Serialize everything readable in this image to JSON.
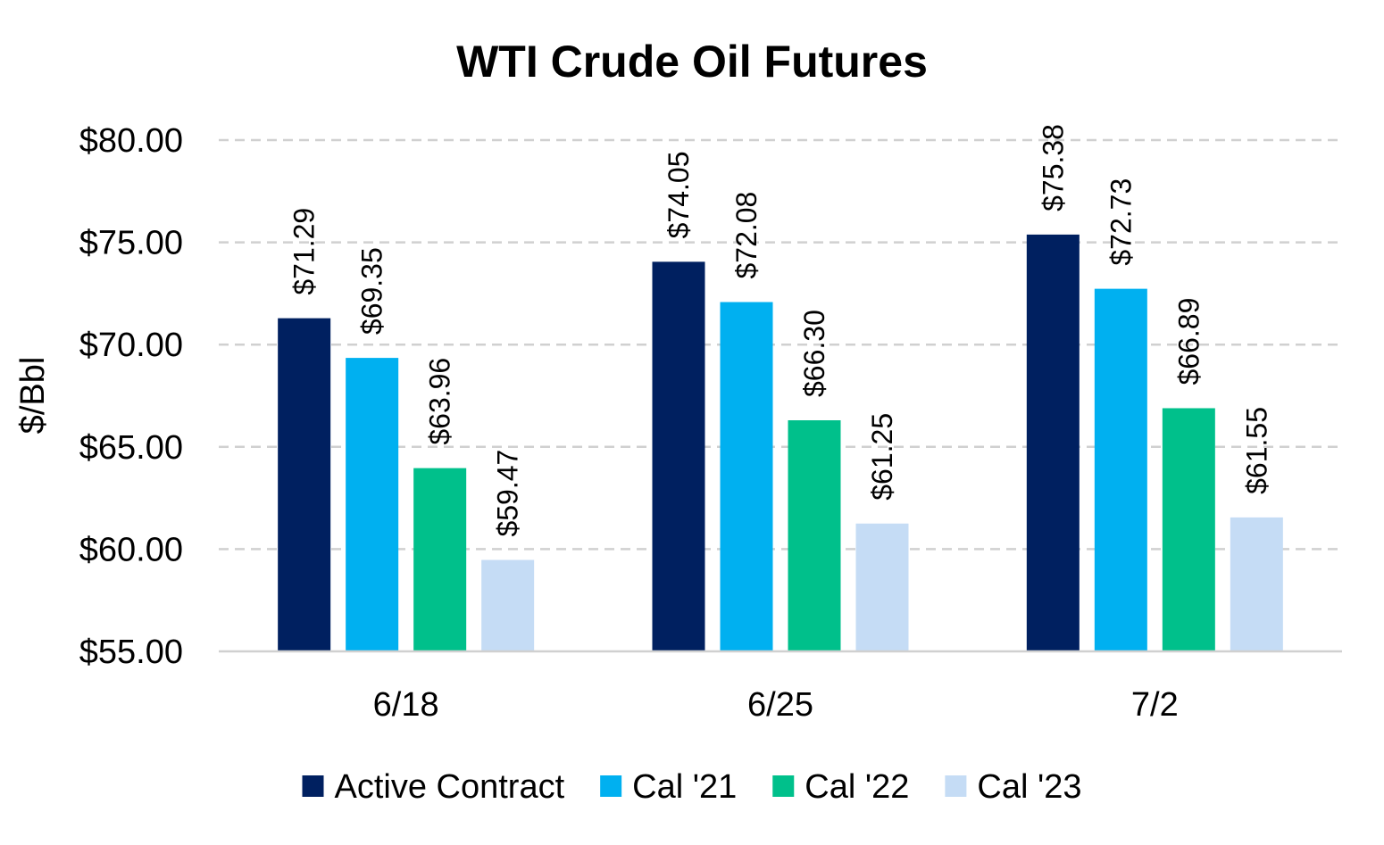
{
  "chart_data": {
    "type": "bar",
    "title": "WTI Crude Oil Futures",
    "xlabel": "",
    "ylabel": "$/Bbl",
    "ylim": [
      55,
      80
    ],
    "yticks": [
      55,
      60,
      65,
      70,
      75,
      80
    ],
    "ytick_labels": [
      "$55.00",
      "$60.00",
      "$65.00",
      "$70.00",
      "$75.00",
      "$80.00"
    ],
    "grid": true,
    "legend_position": "bottom",
    "categories": [
      "6/18",
      "6/25",
      "7/2"
    ],
    "series": [
      {
        "name": "Active Contract",
        "color": "#002060",
        "values": [
          71.29,
          74.05,
          75.38
        ],
        "labels": [
          "$71.29",
          "$74.05",
          "$75.38"
        ]
      },
      {
        "name": "Cal '21",
        "color": "#00B0F0",
        "values": [
          69.35,
          72.08,
          72.73
        ],
        "labels": [
          "$69.35",
          "$72.08",
          "$72.73"
        ]
      },
      {
        "name": "Cal '22",
        "color": "#00C08B",
        "values": [
          63.96,
          66.3,
          66.89
        ],
        "labels": [
          "$63.96",
          "$66.30",
          "$66.89"
        ]
      },
      {
        "name": "Cal '23",
        "color": "#C5DCF5",
        "values": [
          59.47,
          61.25,
          61.55
        ],
        "labels": [
          "$59.47",
          "$61.25",
          "$61.55"
        ]
      }
    ]
  }
}
